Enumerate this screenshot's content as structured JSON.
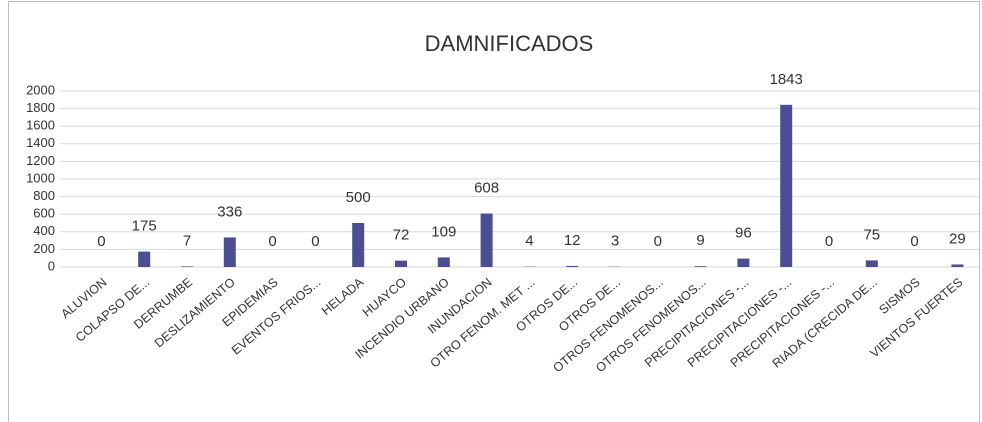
{
  "chart_data": {
    "type": "bar",
    "title": "DAMNIFICADOS",
    "categories": [
      "ALUVION",
      "COLAPSO DE...",
      "DERRUMBE",
      "DESLIZAMIENTO",
      "EPIDEMIAS",
      "EVENTOS FRIOS...",
      "HELADA",
      "HUAYCO",
      "INCENDIO URBANO",
      "INUNDACION",
      "OTRO FENOM. MET ...",
      "OTROS DE...",
      "OTROS DE...",
      "OTROS FENOMENOS...",
      "OTROS FENOMENOS...",
      "PRECIPITACIONES -...",
      "PRECIPITACIONES -...",
      "PRECIPITACIONES -...",
      "RIADA (CRECIDA DE...",
      "SISMOS",
      "VIENTOS FUERTES"
    ],
    "values": [
      0,
      175,
      7,
      336,
      0,
      0,
      500,
      72,
      109,
      608,
      4,
      12,
      3,
      0,
      9,
      96,
      1843,
      0,
      75,
      0,
      29
    ],
    "color": "#4b4e93",
    "ylim": [
      0,
      2000
    ],
    "yticks": [
      0,
      200,
      400,
      600,
      800,
      1000,
      1200,
      1400,
      1600,
      1800,
      2000
    ],
    "grid": true
  }
}
